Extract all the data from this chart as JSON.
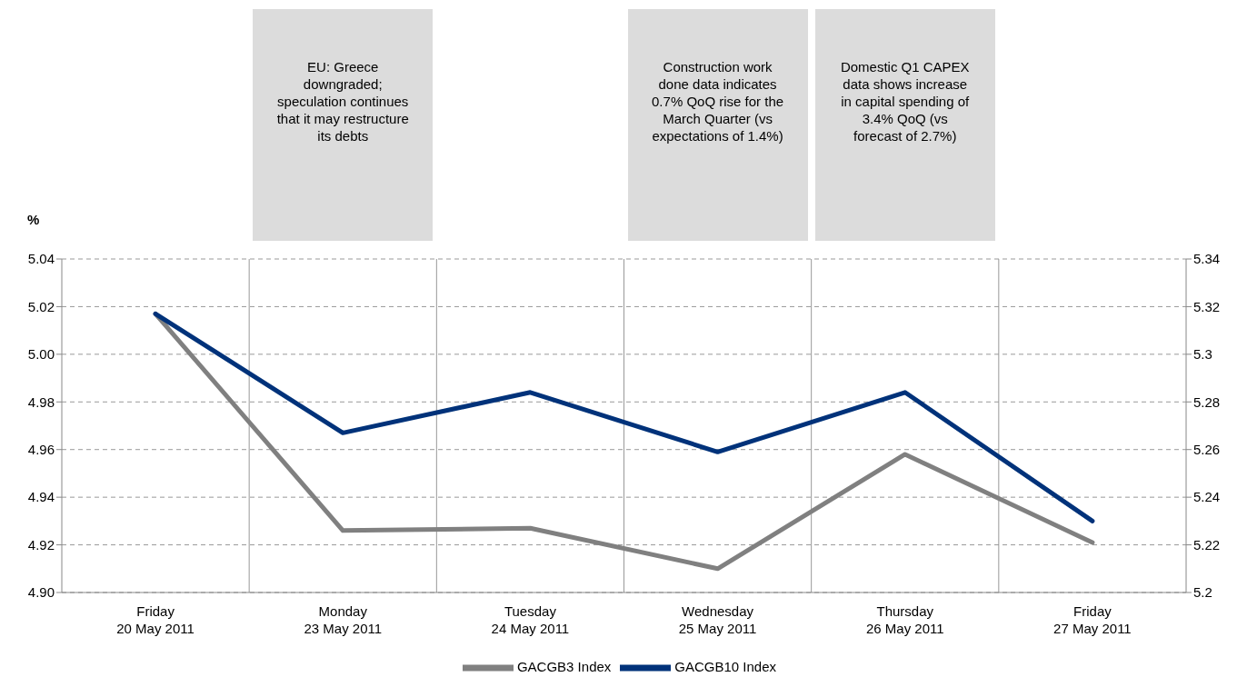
{
  "chart_data": {
    "type": "line",
    "ylabel": "%",
    "categories": [
      "Friday\n20 May 2011",
      "Monday\n23 May 2011",
      "Tuesday\n24 May 2011",
      "Wednesday\n25 May 2011",
      "Thursday\n26 May 2011",
      "Friday\n27 May 2011"
    ],
    "series": [
      {
        "name": "GACGB3 Index",
        "color": "#808080",
        "values": [
          5.017,
          4.926,
          4.927,
          4.91,
          4.958,
          4.921
        ]
      },
      {
        "name": "GACGB10 Index",
        "color": "#00327a",
        "axis": "y2",
        "values": [
          5.317,
          5.267,
          5.284,
          5.259,
          5.284,
          5.23
        ]
      }
    ],
    "ylim": [
      4.9,
      5.04
    ],
    "yticks": [
      {
        "value": 4.9,
        "label": "4.90"
      },
      {
        "value": 4.92,
        "label": "4.92"
      },
      {
        "value": 4.94,
        "label": "4.94"
      },
      {
        "value": 4.96,
        "label": "4.96"
      },
      {
        "value": 4.98,
        "label": "4.98"
      },
      {
        "value": 5.0,
        "label": "5.00"
      },
      {
        "value": 5.02,
        "label": "5.02"
      },
      {
        "value": 5.04,
        "label": "5.04"
      }
    ],
    "y2lim": [
      5.2,
      5.34
    ],
    "y2ticks": [
      5.2,
      5.22,
      5.24,
      5.26,
      5.28,
      5.3,
      5.32,
      5.34
    ],
    "grid": true,
    "legend": "bottom",
    "marker": "none",
    "line_style": "solid",
    "annotations": [
      "EU: Greece downgraded; speculation continues that it may restructure its debts",
      "Construction work done data indicates 0.7% QoQ rise for the March Quarter (vs expectations of 1.4%)",
      "Domestic Q1 CAPEX data shows increase in capital spending of 3.4% QoQ (vs forecast of 2.7%)"
    ]
  }
}
